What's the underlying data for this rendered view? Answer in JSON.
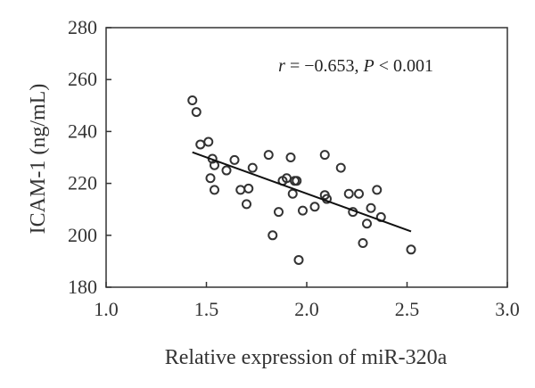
{
  "chart_data": {
    "type": "scatter",
    "xlabel": "Relative expression of miR-320a",
    "ylabel": "ICAM-1 (ng/mL)",
    "xlim": [
      1.0,
      3.0
    ],
    "ylim": [
      180,
      280
    ],
    "x_ticks": [
      "1.0",
      "1.5",
      "2.0",
      "2.5",
      "3.0"
    ],
    "y_ticks": [
      "180",
      "200",
      "220",
      "240",
      "260",
      "280"
    ],
    "annotation": {
      "r_symbol": "r",
      "r_text": " = −0.653, ",
      "p_symbol": "P",
      "p_text": " < 0.001"
    },
    "grid": false,
    "marker_color": "#333333",
    "trendline": {
      "x": [
        1.43,
        2.52
      ],
      "y": [
        232,
        201.5
      ]
    },
    "points": [
      {
        "x": 1.43,
        "y": 252
      },
      {
        "x": 1.45,
        "y": 247.5
      },
      {
        "x": 1.47,
        "y": 235
      },
      {
        "x": 1.51,
        "y": 236
      },
      {
        "x": 1.52,
        "y": 222
      },
      {
        "x": 1.53,
        "y": 229.5
      },
      {
        "x": 1.54,
        "y": 227
      },
      {
        "x": 1.54,
        "y": 217.5
      },
      {
        "x": 1.6,
        "y": 225
      },
      {
        "x": 1.64,
        "y": 229
      },
      {
        "x": 1.67,
        "y": 217.5
      },
      {
        "x": 1.7,
        "y": 212
      },
      {
        "x": 1.71,
        "y": 218
      },
      {
        "x": 1.73,
        "y": 226
      },
      {
        "x": 1.81,
        "y": 231
      },
      {
        "x": 1.83,
        "y": 200
      },
      {
        "x": 1.86,
        "y": 209
      },
      {
        "x": 1.88,
        "y": 221
      },
      {
        "x": 1.9,
        "y": 222
      },
      {
        "x": 1.92,
        "y": 230
      },
      {
        "x": 1.93,
        "y": 216
      },
      {
        "x": 1.94,
        "y": 221
      },
      {
        "x": 1.95,
        "y": 221
      },
      {
        "x": 1.96,
        "y": 190.5
      },
      {
        "x": 1.98,
        "y": 209.5
      },
      {
        "x": 2.04,
        "y": 211
      },
      {
        "x": 2.09,
        "y": 231
      },
      {
        "x": 2.09,
        "y": 215.5
      },
      {
        "x": 2.1,
        "y": 214
      },
      {
        "x": 2.17,
        "y": 226
      },
      {
        "x": 2.21,
        "y": 216
      },
      {
        "x": 2.23,
        "y": 209
      },
      {
        "x": 2.26,
        "y": 216
      },
      {
        "x": 2.28,
        "y": 197
      },
      {
        "x": 2.3,
        "y": 204.5
      },
      {
        "x": 2.32,
        "y": 210.5
      },
      {
        "x": 2.35,
        "y": 217.5
      },
      {
        "x": 2.37,
        "y": 207
      },
      {
        "x": 2.52,
        "y": 194.5
      }
    ]
  }
}
